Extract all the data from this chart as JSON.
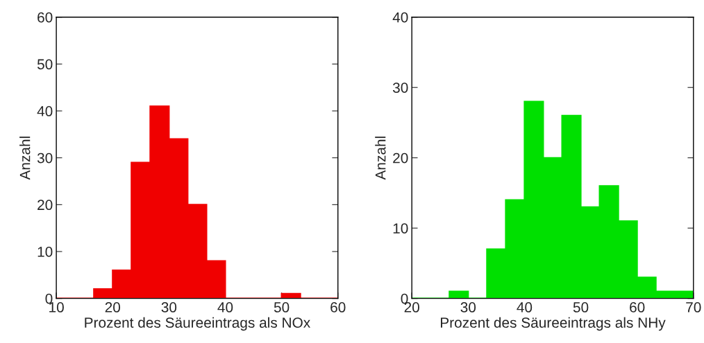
{
  "chart_data": [
    {
      "type": "histogram",
      "xlabel": "Prozent des Säureeintrags als NOx",
      "ylabel": "Anzahl",
      "bins": [
        10,
        13.33,
        16.67,
        20,
        23.33,
        26.67,
        30,
        33.33,
        36.67,
        40,
        43.33,
        46.67,
        50,
        53.33,
        56.67,
        60
      ],
      "values": [
        0,
        0,
        2,
        6,
        29,
        41,
        34,
        20,
        8,
        0,
        0,
        0,
        1,
        0,
        0
      ],
      "color": "#f00000",
      "xlim": [
        10,
        60
      ],
      "xticks": [
        10,
        20,
        30,
        40,
        50,
        60
      ],
      "ylim": [
        0,
        60
      ],
      "yticks": [
        0,
        10,
        20,
        30,
        40,
        50,
        60
      ],
      "grid": false
    },
    {
      "type": "histogram",
      "xlabel": "Prozent des Säureeintrags als NHy",
      "ylabel": "Anzahl",
      "bins": [
        20,
        23.33,
        26.67,
        30,
        33.33,
        36.67,
        40,
        43.33,
        46.67,
        50,
        53.33,
        56.67,
        60,
        63.33,
        66.67,
        70
      ],
      "values": [
        0,
        0,
        1,
        0,
        7,
        14,
        28,
        20,
        26,
        13,
        16,
        11,
        3,
        1,
        1
      ],
      "color": "#00e000",
      "xlim": [
        20,
        70
      ],
      "xticks": [
        20,
        30,
        40,
        50,
        60,
        70
      ],
      "ylim": [
        0,
        40
      ],
      "yticks": [
        0,
        10,
        20,
        30,
        40
      ],
      "grid": false
    }
  ]
}
